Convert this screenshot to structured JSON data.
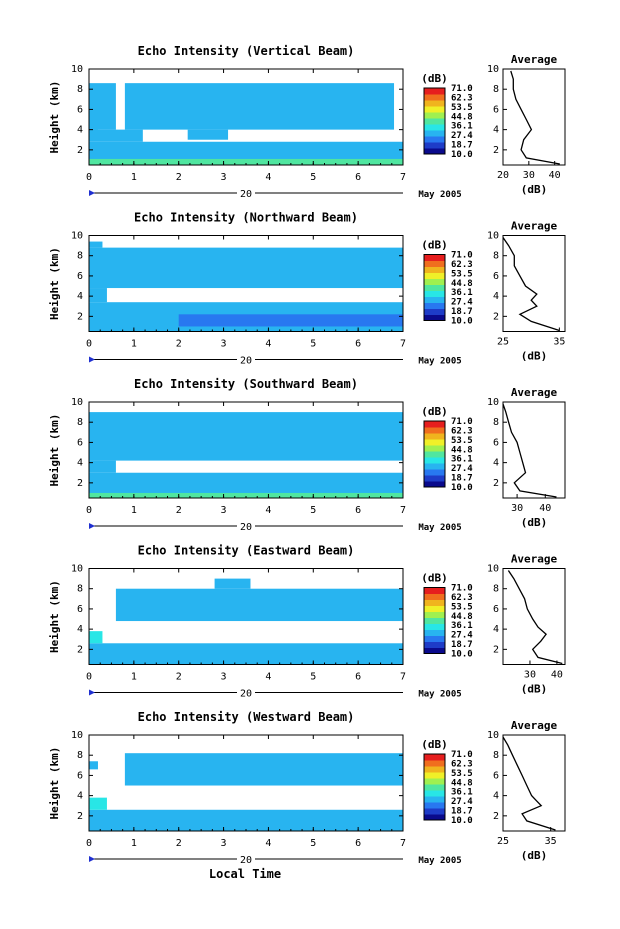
{
  "figure": {
    "x_axis_label": "Local Time",
    "date_label": "May 2005",
    "day_label": "20",
    "y_axis_label": "Height (km)",
    "colorbar_unit": "(dB)",
    "colorbar_ticks": [
      "71.0",
      "62.3",
      "53.5",
      "44.8",
      "36.1",
      "27.4",
      "18.7",
      "10.0"
    ],
    "colorbar_colors": [
      "#0a0a8c",
      "#1e3cc8",
      "#2878f0",
      "#28b4f0",
      "#28e6e6",
      "#50e6a0",
      "#a0f050",
      "#f0f028",
      "#f0b41e",
      "#f06e1e",
      "#e61e1e"
    ],
    "average_title": "Average",
    "average_xlabel": "(dB)"
  },
  "chart_data": [
    {
      "type": "heatmap",
      "title": "Echo Intensity (Vertical Beam)",
      "xlabel": "",
      "ylabel": "Height (km)",
      "x_ticks": [
        0,
        1,
        2,
        3,
        4,
        5,
        6,
        7
      ],
      "xlim": [
        0,
        7
      ],
      "y_ticks": [
        2,
        4,
        6,
        8,
        10
      ],
      "ylim": [
        0.5,
        10
      ],
      "layers": [
        {
          "y0": 0.5,
          "y1": 2.8,
          "level": 3,
          "gaps": []
        },
        {
          "y0": 0.5,
          "y1": 1.1,
          "level": 5,
          "gaps": []
        },
        {
          "y0": 2.8,
          "y1": 4.0,
          "level": 3,
          "gaps": [
            [
              1.2,
              7.0
            ]
          ]
        },
        {
          "y0": 4.0,
          "y1": 8.6,
          "level": 3,
          "gaps": [
            [
              0.6,
              0.8
            ],
            [
              6.8,
              7.0
            ]
          ]
        },
        {
          "y0": 3.0,
          "y1": 4.0,
          "level": 3,
          "gaps": [
            [
              0.2,
              2.2
            ],
            [
              3.1,
              7.0
            ]
          ]
        },
        {
          "y0": 6.5,
          "y1": 7.5,
          "level": 3,
          "gaps": [
            [
              0.3,
              7.0
            ]
          ]
        }
      ],
      "average": {
        "xlim": [
          20,
          44
        ],
        "x_ticks": [
          20,
          30,
          40
        ],
        "y": [
          0.6,
          1.2,
          2,
          3,
          4,
          5,
          6,
          7,
          8,
          9,
          9.8
        ],
        "x": [
          42,
          29,
          27,
          28,
          31,
          29,
          27,
          25,
          24,
          24,
          23
        ]
      }
    },
    {
      "type": "heatmap",
      "title": "Echo Intensity (Northward Beam)",
      "xlabel": "",
      "ylabel": "Height (km)",
      "x_ticks": [
        0,
        1,
        2,
        3,
        4,
        5,
        6,
        7
      ],
      "xlim": [
        0,
        7
      ],
      "y_ticks": [
        2,
        4,
        6,
        8,
        10
      ],
      "ylim": [
        0.5,
        10
      ],
      "layers": [
        {
          "y0": 0.5,
          "y1": 3.4,
          "level": 3,
          "gaps": []
        },
        {
          "y0": 1.0,
          "y1": 2.2,
          "level": 2,
          "gaps": [
            [
              0,
              2.0
            ]
          ]
        },
        {
          "y0": 3.4,
          "y1": 4.8,
          "level": 3,
          "gaps": [
            [
              0.4,
              7.0
            ]
          ]
        },
        {
          "y0": 4.8,
          "y1": 8.8,
          "level": 3,
          "gaps": []
        },
        {
          "y0": 8.8,
          "y1": 9.4,
          "level": 3,
          "gaps": [
            [
              0.3,
              7.0
            ]
          ]
        }
      ],
      "average": {
        "xlim": [
          25,
          36
        ],
        "x_ticks": [
          25,
          35
        ],
        "y": [
          0.6,
          1.5,
          2.2,
          3,
          3.6,
          4.2,
          5,
          6,
          7,
          8,
          9,
          9.8
        ],
        "x": [
          35,
          30,
          28,
          31,
          30,
          31,
          29,
          28,
          27,
          27,
          26,
          25
        ]
      }
    },
    {
      "type": "heatmap",
      "title": "Echo Intensity (Southward Beam)",
      "xlabel": "",
      "ylabel": "Height (km)",
      "x_ticks": [
        0,
        1,
        2,
        3,
        4,
        5,
        6,
        7
      ],
      "xlim": [
        0,
        7
      ],
      "y_ticks": [
        2,
        4,
        6,
        8,
        10
      ],
      "ylim": [
        0.5,
        10
      ],
      "layers": [
        {
          "y0": 0.5,
          "y1": 3.0,
          "level": 3,
          "gaps": []
        },
        {
          "y0": 0.5,
          "y1": 1.0,
          "level": 5,
          "gaps": []
        },
        {
          "y0": 3.0,
          "y1": 4.2,
          "level": 3,
          "gaps": [
            [
              0.6,
              7.0
            ]
          ]
        },
        {
          "y0": 4.2,
          "y1": 9.0,
          "level": 3,
          "gaps": []
        }
      ],
      "average": {
        "xlim": [
          25,
          47
        ],
        "x_ticks": [
          30,
          40
        ],
        "y": [
          0.6,
          1.2,
          2,
          3,
          4,
          5,
          6,
          7,
          8,
          9,
          9.8
        ],
        "x": [
          44,
          31,
          29,
          33,
          32,
          31,
          30,
          28,
          27,
          26,
          25
        ]
      }
    },
    {
      "type": "heatmap",
      "title": "Echo Intensity (Eastward Beam)",
      "xlabel": "",
      "ylabel": "Height (km)",
      "x_ticks": [
        0,
        1,
        2,
        3,
        4,
        5,
        6,
        7
      ],
      "xlim": [
        0,
        7
      ],
      "y_ticks": [
        2,
        4,
        6,
        8,
        10
      ],
      "ylim": [
        0.5,
        10
      ],
      "layers": [
        {
          "y0": 0.5,
          "y1": 2.6,
          "level": 3,
          "gaps": []
        },
        {
          "y0": 2.6,
          "y1": 3.8,
          "level": 4,
          "gaps": [
            [
              0.3,
              7.0
            ]
          ]
        },
        {
          "y0": 4.8,
          "y1": 8.0,
          "level": 3,
          "gaps": [
            [
              0,
              0.6
            ]
          ]
        },
        {
          "y0": 8.0,
          "y1": 9.0,
          "level": 3,
          "gaps": [
            [
              0,
              2.8
            ],
            [
              3.6,
              7.0
            ]
          ]
        }
      ],
      "average": {
        "xlim": [
          20,
          43
        ],
        "x_ticks": [
          30,
          40
        ],
        "y": [
          0.6,
          1.2,
          2,
          2.8,
          3.5,
          4.2,
          5,
          6,
          7,
          8,
          9,
          9.8
        ],
        "x": [
          42,
          33,
          31,
          34,
          36,
          33,
          31,
          29,
          28,
          26,
          24,
          22
        ]
      }
    },
    {
      "type": "heatmap",
      "title": "Echo Intensity (Westward Beam)",
      "xlabel": "Local Time",
      "ylabel": "Height (km)",
      "x_ticks": [
        0,
        1,
        2,
        3,
        4,
        5,
        6,
        7
      ],
      "xlim": [
        0,
        7
      ],
      "y_ticks": [
        2,
        4,
        6,
        8,
        10
      ],
      "ylim": [
        0.5,
        10
      ],
      "layers": [
        {
          "y0": 0.5,
          "y1": 2.6,
          "level": 3,
          "gaps": []
        },
        {
          "y0": 2.6,
          "y1": 3.8,
          "level": 4,
          "gaps": [
            [
              0.4,
              7.0
            ]
          ]
        },
        {
          "y0": 5.0,
          "y1": 8.2,
          "level": 3,
          "gaps": [
            [
              0,
              0.8
            ]
          ]
        },
        {
          "y0": 6.6,
          "y1": 7.4,
          "level": 3,
          "gaps": [
            [
              0.2,
              7.0
            ]
          ]
        }
      ],
      "average": {
        "xlim": [
          25,
          38
        ],
        "x_ticks": [
          25,
          35
        ],
        "y": [
          0.6,
          1.5,
          2.2,
          3,
          3.5,
          4,
          5,
          6,
          7,
          8,
          9,
          9.8
        ],
        "x": [
          36,
          30,
          29,
          33,
          32,
          31,
          30,
          29,
          28,
          27,
          26,
          25
        ]
      }
    }
  ]
}
